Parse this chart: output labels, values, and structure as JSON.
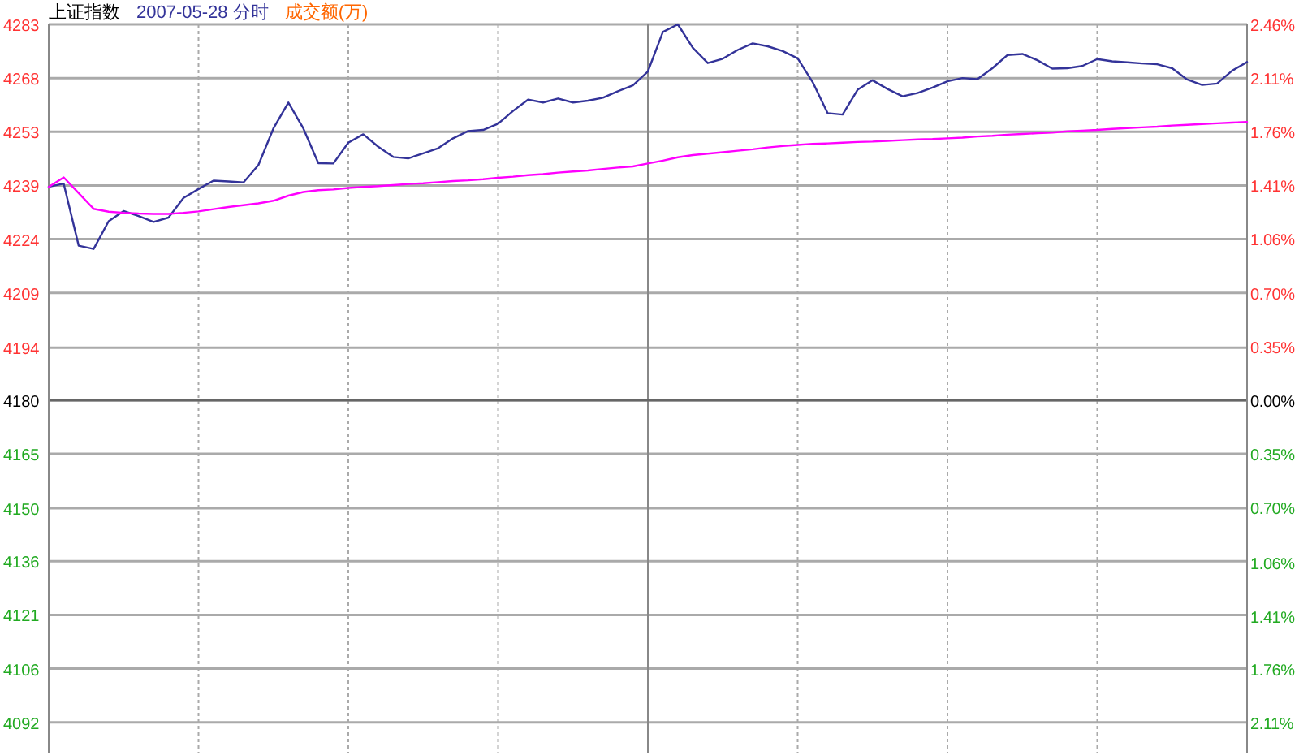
{
  "chart_data": {
    "type": "line",
    "title": "上证指数",
    "annotations": [
      "成交额(万)"
    ],
    "categories": [
      null,
      null,
      null,
      null,
      null,
      null,
      null,
      null,
      null,
      null,
      null,
      null,
      null,
      null,
      null,
      null,
      null,
      null,
      null,
      null,
      null,
      null,
      null,
      null,
      null,
      null,
      null,
      null,
      null,
      null,
      null,
      null,
      null,
      null,
      null,
      null,
      null,
      null,
      null,
      null,
      null,
      null,
      null,
      null,
      null,
      null,
      null,
      null,
      null,
      null,
      null,
      null,
      null,
      null,
      null,
      null,
      null,
      null,
      null,
      null,
      null,
      null,
      null,
      null,
      null,
      null,
      null,
      null,
      null,
      null,
      null,
      null,
      null,
      null,
      null,
      null,
      null,
      null,
      null,
      null,
      null
    ],
    "series": [
      {
        "name": "2007-05-28 分时",
        "color": "#333399",
        "values": [
          4238.4,
          4239.3,
          4222.3,
          4221.4,
          4229.0,
          4231.8,
          4230.4,
          4228.8,
          4230.0,
          4235.4,
          4237.8,
          4240.1,
          4239.9,
          4239.6,
          4244.4,
          4254.4,
          4261.5,
          4254.4,
          4244.9,
          4244.8,
          4250.5,
          4252.8,
          4249.4,
          4246.6,
          4246.2,
          4247.6,
          4249.0,
          4251.7,
          4253.7,
          4254.0,
          4255.7,
          4259.2,
          4262.3,
          4261.5,
          4262.6,
          4261.5,
          4262.0,
          4262.8,
          4264.6,
          4266.2,
          4270.0,
          4280.8,
          4282.9,
          4276.5,
          4272.3,
          4273.5,
          4275.9,
          4277.7,
          4276.9,
          4275.6,
          4273.6,
          4267.1,
          4258.6,
          4258.2,
          4265.0,
          4267.6,
          4265.2,
          4263.2,
          4264.1,
          4265.6,
          4267.3,
          4268.2,
          4267.9,
          4270.9,
          4274.5,
          4274.8,
          4273.1,
          4270.8,
          4270.9,
          4271.5,
          4273.4,
          4272.8,
          4272.5,
          4272.2,
          4272.0,
          4270.9,
          4267.8,
          4266.3,
          4266.7,
          4270.2,
          4272.6
        ]
      },
      {
        "color": "#ff00ff",
        "values": [
          4238.4,
          4241.0,
          4236.7,
          4232.4,
          4231.6,
          4231.3,
          4231.1,
          4231.0,
          4231.0,
          4231.3,
          4231.7,
          4232.3,
          4232.9,
          4233.4,
          4233.9,
          4234.6,
          4236.0,
          4237.0,
          4237.5,
          4237.7,
          4238.1,
          4238.4,
          4238.6,
          4238.9,
          4239.2,
          4239.4,
          4239.7,
          4240.0,
          4240.2,
          4240.5,
          4240.9,
          4241.2,
          4241.6,
          4241.9,
          4242.3,
          4242.6,
          4242.9,
          4243.3,
          4243.7,
          4244.0,
          4244.8,
          4245.6,
          4246.5,
          4247.1,
          4247.5,
          4247.9,
          4248.3,
          4248.7,
          4249.2,
          4249.6,
          4249.9,
          4250.2,
          4250.3,
          4250.5,
          4250.7,
          4250.8,
          4251.0,
          4251.2,
          4251.4,
          4251.5,
          4251.7,
          4251.9,
          4252.2,
          4252.4,
          4252.7,
          4252.9,
          4253.1,
          4253.3,
          4253.6,
          4253.8,
          4254.0,
          4254.3,
          4254.5,
          4254.7,
          4254.9,
          4255.2,
          4255.4,
          4255.6,
          4255.8,
          4256.0,
          4256.2
        ]
      }
    ],
    "ylim": [
      4083.3,
      4282.9
    ],
    "yticks": [
      {
        "value": 4282.9,
        "label": "4283"
      },
      {
        "value": 4268.2,
        "label": "4268"
      },
      {
        "value": 4253.5,
        "label": "4253"
      },
      {
        "value": 4238.8,
        "label": "4239"
      },
      {
        "value": 4224.1,
        "label": "4224"
      },
      {
        "value": 4209.4,
        "label": "4209"
      },
      {
        "value": 4194.4,
        "label": "4194"
      },
      {
        "value": 4180,
        "label": "4180"
      },
      {
        "value": 4165.3,
        "label": "4165"
      },
      {
        "value": 4150.4,
        "label": "4150"
      },
      {
        "value": 4135.9,
        "label": "4136"
      },
      {
        "value": 4121.2,
        "label": "4121"
      },
      {
        "value": 4106.5,
        "label": "4106"
      },
      {
        "value": 4091.8,
        "label": "4092"
      }
    ],
    "y2lim": [
      -2.31,
      2.46
    ],
    "y2ticks": [
      {
        "value": 2.46,
        "label": "2.46%"
      },
      {
        "value": 2.11,
        "label": "2.11%"
      },
      {
        "value": 1.76,
        "label": "1.76%"
      },
      {
        "value": 1.41,
        "label": "1.41%"
      },
      {
        "value": 1.06,
        "label": "1.06%"
      },
      {
        "value": 0.7,
        "label": "0.70%"
      },
      {
        "value": 0.35,
        "label": "0.35%"
      },
      {
        "value": 0,
        "label": "0.00%"
      },
      {
        "value": -0.35,
        "label": "0.35%"
      },
      {
        "value": -0.7,
        "label": "0.70%"
      },
      {
        "value": -1.06,
        "label": "1.06%"
      },
      {
        "value": -1.41,
        "label": "1.41%"
      },
      {
        "value": -1.76,
        "label": "1.76%"
      },
      {
        "value": -2.11,
        "label": "2.11%"
      }
    ],
    "ref_lines": [
      {
        "axis": "y",
        "value": 4180,
        "color": "#666666"
      }
    ],
    "grid": true,
    "legend": "top left",
    "tick_labels": "y"
  }
}
